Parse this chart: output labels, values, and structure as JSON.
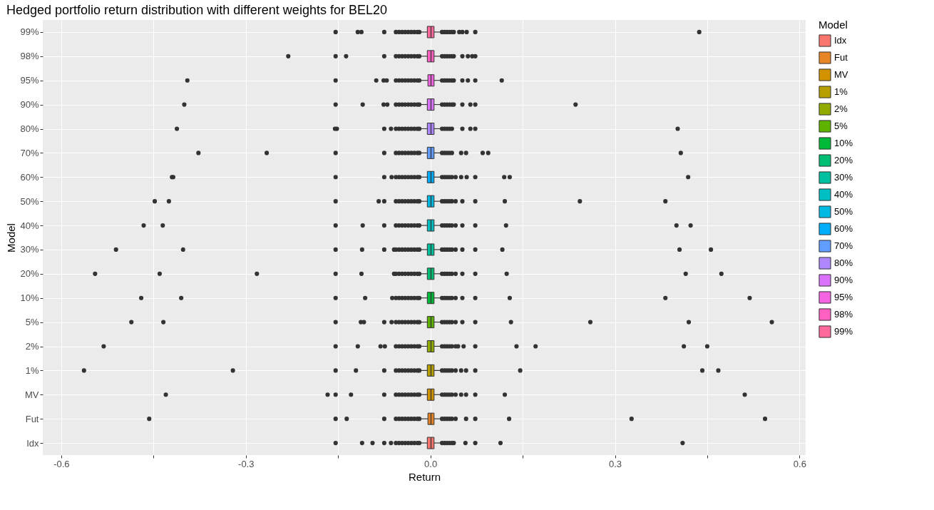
{
  "chart_data": {
    "type": "box",
    "orientation": "horizontal",
    "title": "Hedged portfolio return distribution with different weights for BEL20",
    "xlabel": "Return",
    "ylabel": "Model",
    "legend_title": "Model",
    "legend": "right",
    "grid": true,
    "categories": [
      "99%",
      "98%",
      "95%",
      "90%",
      "80%",
      "70%",
      "60%",
      "50%",
      "40%",
      "30%",
      "20%",
      "10%",
      "5%",
      "2%",
      "1%",
      "MV",
      "Fut",
      "Idx"
    ],
    "xlim": [
      -0.63,
      0.61
    ],
    "xticks": [
      -0.6,
      {
        "value": -0.45,
        "label": null
      },
      -0.3,
      {
        "value": -0.15,
        "label": null
      },
      {
        "value": 0,
        "label": "0.0"
      },
      {
        "value": 0.15,
        "label": null
      },
      0.3,
      {
        "value": 0.45,
        "label": null
      },
      0.6
    ],
    "series": [
      {
        "name": "Idx",
        "color": "#F8766D",
        "boxes": [
          null,
          null,
          null,
          null,
          null,
          null,
          null,
          null,
          null,
          null,
          null,
          null,
          null,
          null,
          null,
          null,
          null,
          {
            "low": -0.016,
            "q1": -0.005,
            "median": 0.001,
            "q3": 0.006,
            "high": 0.017,
            "outliers": [
              -0.154,
              -0.111,
              -0.094,
              -0.075,
              -0.064,
              -0.056,
              -0.051,
              -0.046,
              -0.041,
              -0.036,
              -0.031,
              -0.026,
              -0.021,
              -0.018,
              0.019,
              0.023,
              0.027,
              0.031,
              0.035,
              0.038,
              0.057,
              0.073,
              0.114,
              0.41
            ]
          }
        ]
      },
      {
        "name": "Fut",
        "color": "#E88526",
        "boxes": [
          null,
          null,
          null,
          null,
          null,
          null,
          null,
          null,
          null,
          null,
          null,
          null,
          null,
          null,
          null,
          null,
          {
            "low": -0.016,
            "q1": -0.004,
            "median": 0.001,
            "q3": 0.006,
            "high": 0.017,
            "outliers": [
              -0.457,
              -0.154,
              -0.136,
              -0.075,
              -0.056,
              -0.051,
              -0.046,
              -0.041,
              -0.036,
              -0.031,
              -0.026,
              -0.021,
              -0.018,
              0.019,
              0.023,
              0.027,
              0.031,
              0.035,
              0.041,
              0.058,
              0.073,
              0.128,
              0.327,
              0.544
            ]
          },
          null
        ]
      },
      {
        "name": "MV",
        "color": "#D39200",
        "boxes": [
          null,
          null,
          null,
          null,
          null,
          null,
          null,
          null,
          null,
          null,
          null,
          null,
          null,
          null,
          null,
          {
            "low": -0.016,
            "q1": -0.005,
            "median": 0.001,
            "q3": 0.006,
            "high": 0.017,
            "outliers": [
              -0.43,
              -0.167,
              -0.154,
              -0.129,
              -0.075,
              -0.056,
              -0.051,
              -0.046,
              -0.041,
              -0.036,
              -0.031,
              -0.026,
              -0.021,
              -0.018,
              0.019,
              0.023,
              0.027,
              0.031,
              0.035,
              0.041,
              0.05,
              0.058,
              0.073,
              0.121,
              0.511
            ]
          },
          null,
          null
        ]
      },
      {
        "name": "1%",
        "color": "#B79F00",
        "boxes": [
          null,
          null,
          null,
          null,
          null,
          null,
          null,
          null,
          null,
          null,
          null,
          null,
          null,
          null,
          {
            "low": -0.016,
            "q1": -0.005,
            "median": 0.001,
            "q3": 0.006,
            "high": 0.017,
            "outliers": [
              -0.563,
              -0.321,
              -0.154,
              -0.121,
              -0.075,
              -0.056,
              -0.051,
              -0.046,
              -0.041,
              -0.036,
              -0.031,
              -0.026,
              -0.021,
              -0.018,
              0.019,
              0.023,
              0.027,
              0.031,
              0.035,
              0.041,
              0.05,
              0.058,
              0.073,
              0.146,
              0.442,
              0.468
            ]
          },
          null,
          null,
          null
        ]
      },
      {
        "name": "2%",
        "color": "#93AA00",
        "boxes": [
          null,
          null,
          null,
          null,
          null,
          null,
          null,
          null,
          null,
          null,
          null,
          null,
          null,
          {
            "low": -0.016,
            "q1": -0.005,
            "median": 0.001,
            "q3": 0.006,
            "high": 0.017,
            "outliers": [
              -0.531,
              -0.154,
              -0.118,
              -0.081,
              -0.074,
              -0.056,
              -0.051,
              -0.046,
              -0.041,
              -0.036,
              -0.031,
              -0.026,
              -0.021,
              -0.018,
              0.019,
              0.023,
              0.027,
              0.031,
              0.035,
              0.041,
              0.045,
              0.054,
              0.073,
              0.14,
              0.171,
              0.412,
              0.45
            ]
          },
          null,
          null,
          null,
          null
        ]
      },
      {
        "name": "5%",
        "color": "#5EB300",
        "boxes": [
          null,
          null,
          null,
          null,
          null,
          null,
          null,
          null,
          null,
          null,
          null,
          null,
          {
            "low": -0.016,
            "q1": -0.005,
            "median": 0.001,
            "q3": 0.006,
            "high": 0.017,
            "outliers": [
              -0.486,
              -0.434,
              -0.154,
              -0.113,
              -0.108,
              -0.075,
              -0.063,
              -0.056,
              -0.051,
              -0.046,
              -0.041,
              -0.036,
              -0.031,
              -0.026,
              -0.021,
              -0.018,
              0.019,
              0.023,
              0.027,
              0.031,
              0.035,
              0.041,
              0.052,
              0.073,
              0.131,
              0.26,
              0.42,
              0.555
            ]
          },
          null,
          null,
          null,
          null,
          null
        ]
      },
      {
        "name": "10%",
        "color": "#00BA38",
        "boxes": [
          null,
          null,
          null,
          null,
          null,
          null,
          null,
          null,
          null,
          null,
          null,
          {
            "low": -0.016,
            "q1": -0.005,
            "median": 0.001,
            "q3": 0.006,
            "high": 0.017,
            "outliers": [
              -0.47,
              -0.405,
              -0.154,
              -0.106,
              -0.062,
              -0.056,
              -0.051,
              -0.046,
              -0.041,
              -0.036,
              -0.031,
              -0.026,
              -0.021,
              -0.018,
              0.019,
              0.023,
              0.027,
              0.031,
              0.035,
              0.041,
              0.052,
              0.073,
              0.129,
              0.382,
              0.519
            ]
          },
          null,
          null,
          null,
          null,
          null,
          null
        ]
      },
      {
        "name": "20%",
        "color": "#00BF74",
        "boxes": [
          null,
          null,
          null,
          null,
          null,
          null,
          null,
          null,
          null,
          null,
          {
            "low": -0.016,
            "q1": -0.005,
            "median": 0.001,
            "q3": 0.006,
            "high": 0.017,
            "outliers": [
              -0.545,
              -0.44,
              -0.282,
              -0.154,
              -0.112,
              -0.059,
              -0.056,
              -0.051,
              -0.046,
              -0.041,
              -0.036,
              -0.031,
              -0.026,
              -0.021,
              -0.018,
              0.019,
              0.023,
              0.027,
              0.031,
              0.035,
              0.041,
              0.052,
              0.073,
              0.124,
              0.415,
              0.473
            ]
          },
          null,
          null,
          null,
          null,
          null,
          null,
          null
        ]
      },
      {
        "name": "30%",
        "color": "#00C19F",
        "boxes": [
          null,
          null,
          null,
          null,
          null,
          null,
          null,
          null,
          null,
          {
            "low": -0.016,
            "q1": -0.005,
            "median": 0.001,
            "q3": 0.006,
            "high": 0.017,
            "outliers": [
              -0.511,
              -0.402,
              -0.154,
              -0.111,
              -0.075,
              -0.059,
              -0.056,
              -0.051,
              -0.046,
              -0.041,
              -0.036,
              -0.031,
              -0.026,
              -0.021,
              -0.018,
              0.019,
              0.023,
              0.027,
              0.031,
              0.035,
              0.041,
              0.052,
              0.073,
              0.117,
              0.405,
              0.456
            ]
          },
          null,
          null,
          null,
          null,
          null,
          null,
          null,
          null
        ]
      },
      {
        "name": "40%",
        "color": "#00BFC4",
        "boxes": [
          null,
          null,
          null,
          null,
          null,
          null,
          null,
          null,
          {
            "low": -0.016,
            "q1": -0.005,
            "median": 0.001,
            "q3": 0.006,
            "high": 0.017,
            "outliers": [
              -0.466,
              -0.435,
              -0.154,
              -0.11,
              -0.075,
              -0.056,
              -0.051,
              -0.046,
              -0.041,
              -0.036,
              -0.031,
              -0.026,
              -0.021,
              -0.018,
              0.019,
              0.023,
              0.027,
              0.031,
              0.035,
              0.041,
              0.052,
              0.073,
              0.123,
              0.4,
              0.423
            ]
          },
          null,
          null,
          null,
          null,
          null,
          null,
          null,
          null,
          null
        ]
      },
      {
        "name": "50%",
        "color": "#00B9E3",
        "boxes": [
          null,
          null,
          null,
          null,
          null,
          null,
          null,
          {
            "low": -0.016,
            "q1": -0.005,
            "median": 0.001,
            "q3": 0.006,
            "high": 0.017,
            "outliers": [
              -0.448,
              -0.425,
              -0.154,
              -0.084,
              -0.075,
              -0.056,
              -0.051,
              -0.046,
              -0.041,
              -0.036,
              -0.031,
              -0.026,
              -0.021,
              -0.018,
              0.019,
              0.023,
              0.027,
              0.031,
              0.035,
              0.041,
              0.052,
              0.073,
              0.121,
              0.243,
              0.382
            ]
          },
          null,
          null,
          null,
          null,
          null,
          null,
          null,
          null,
          null,
          null
        ]
      },
      {
        "name": "60%",
        "color": "#00ADFA",
        "boxes": [
          null,
          null,
          null,
          null,
          null,
          null,
          {
            "low": -0.016,
            "q1": -0.005,
            "median": 0.001,
            "q3": 0.006,
            "high": 0.017,
            "outliers": [
              -0.42,
              -0.418,
              -0.154,
              -0.075,
              -0.063,
              -0.056,
              -0.051,
              -0.046,
              -0.041,
              -0.036,
              -0.031,
              -0.026,
              -0.021,
              -0.018,
              0.019,
              0.023,
              0.027,
              0.031,
              0.035,
              0.041,
              0.05,
              0.059,
              0.073,
              0.12,
              0.129,
              0.419
            ]
          },
          null,
          null,
          null,
          null,
          null,
          null,
          null,
          null,
          null,
          null,
          null
        ]
      },
      {
        "name": "70%",
        "color": "#619CFF",
        "boxes": [
          null,
          null,
          null,
          null,
          null,
          {
            "low": -0.016,
            "q1": -0.005,
            "median": 0.001,
            "q3": 0.006,
            "high": 0.017,
            "outliers": [
              -0.377,
              -0.266,
              -0.154,
              -0.075,
              -0.056,
              -0.051,
              -0.046,
              -0.041,
              -0.036,
              -0.031,
              -0.026,
              -0.021,
              -0.018,
              0.019,
              0.023,
              0.027,
              0.031,
              0.035,
              0.05,
              0.058,
              0.085,
              0.094,
              0.407
            ]
          },
          null,
          null,
          null,
          null,
          null,
          null,
          null,
          null,
          null,
          null,
          null,
          null
        ]
      },
      {
        "name": "80%",
        "color": "#AE87FF",
        "boxes": [
          null,
          null,
          null,
          null,
          {
            "low": -0.016,
            "q1": -0.005,
            "median": 0.001,
            "q3": 0.006,
            "high": 0.017,
            "outliers": [
              -0.412,
              -0.155,
              -0.152,
              -0.075,
              -0.064,
              -0.056,
              -0.051,
              -0.046,
              -0.041,
              -0.036,
              -0.031,
              -0.026,
              -0.021,
              -0.018,
              0.019,
              0.023,
              0.027,
              0.031,
              0.035,
              0.052,
              0.065,
              0.073,
              0.402
            ]
          },
          null,
          null,
          null,
          null,
          null,
          null,
          null,
          null,
          null,
          null,
          null,
          null,
          null
        ]
      },
      {
        "name": "90%",
        "color": "#DB72FB",
        "boxes": [
          null,
          null,
          null,
          {
            "low": -0.016,
            "q1": -0.005,
            "median": 0.001,
            "q3": 0.006,
            "high": 0.017,
            "outliers": [
              -0.4,
              -0.154,
              -0.11,
              -0.076,
              -0.07,
              -0.056,
              -0.051,
              -0.046,
              -0.041,
              -0.036,
              -0.031,
              -0.026,
              -0.021,
              -0.018,
              0.019,
              0.023,
              0.027,
              0.031,
              0.035,
              0.038,
              0.052,
              0.065,
              0.073,
              0.236
            ]
          },
          null,
          null,
          null,
          null,
          null,
          null,
          null,
          null,
          null,
          null,
          null,
          null,
          null,
          null
        ]
      },
      {
        "name": "95%",
        "color": "#F564E3",
        "boxes": [
          null,
          null,
          {
            "low": -0.016,
            "q1": -0.004,
            "median": 0.001,
            "q3": 0.006,
            "high": 0.017,
            "outliers": [
              -0.395,
              -0.154,
              -0.088,
              -0.076,
              -0.071,
              -0.056,
              -0.051,
              -0.046,
              -0.041,
              -0.036,
              -0.031,
              -0.026,
              -0.021,
              -0.018,
              0.019,
              0.023,
              0.027,
              0.031,
              0.035,
              0.038,
              0.052,
              0.061,
              0.073,
              0.116
            ]
          },
          null,
          null,
          null,
          null,
          null,
          null,
          null,
          null,
          null,
          null,
          null,
          null,
          null,
          null,
          null
        ]
      },
      {
        "name": "98%",
        "color": "#FF61C3",
        "boxes": [
          null,
          {
            "low": -0.016,
            "q1": -0.005,
            "median": 0.001,
            "q3": 0.006,
            "high": 0.017,
            "outliers": [
              -0.231,
              -0.154,
              -0.137,
              -0.075,
              -0.056,
              -0.051,
              -0.046,
              -0.041,
              -0.036,
              -0.031,
              -0.026,
              -0.021,
              -0.018,
              0.019,
              0.023,
              0.027,
              0.031,
              0.035,
              0.038,
              0.052,
              0.061,
              0.068,
              0.073
            ]
          },
          null,
          null,
          null,
          null,
          null,
          null,
          null,
          null,
          null,
          null,
          null,
          null,
          null,
          null,
          null,
          null
        ]
      },
      {
        "name": "99%",
        "color": "#FF699C",
        "boxes": [
          {
            "low": -0.016,
            "q1": -0.005,
            "median": 0.001,
            "q3": 0.006,
            "high": 0.017,
            "outliers": [
              -0.154,
              -0.118,
              -0.112,
              -0.075,
              -0.056,
              -0.051,
              -0.046,
              -0.041,
              -0.036,
              -0.031,
              -0.026,
              -0.021,
              -0.018,
              0.019,
              0.023,
              0.027,
              0.031,
              0.035,
              0.038,
              0.047,
              0.052,
              0.059,
              0.073,
              0.437
            ]
          },
          null,
          null,
          null,
          null,
          null,
          null,
          null,
          null,
          null,
          null,
          null,
          null,
          null,
          null,
          null,
          null,
          null
        ]
      }
    ]
  }
}
